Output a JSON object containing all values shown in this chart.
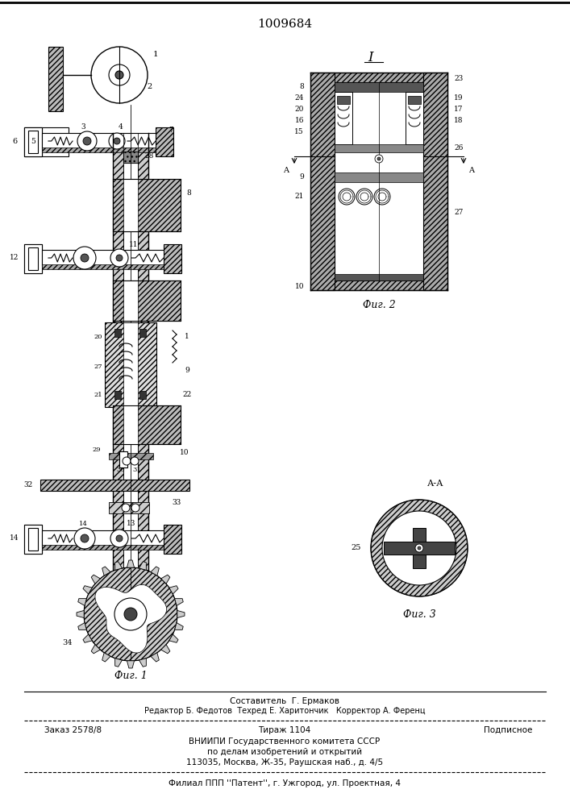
{
  "patent_number": "1009684",
  "bg": "#ffffff",
  "lc": "#000000",
  "fig_width": 7.07,
  "fig_height": 10.0,
  "fig1_caption": "Фиг. 1",
  "fig2_caption": "Фиг. 2",
  "fig3_caption": "Фиг. 3",
  "footer1": "Составитель  Г. Ермаков",
  "footer2": "Редактор Б. Федотов  Техред Е. Харитончик   Корректор А. Ференц",
  "footer3a": "Заказ 2578/8",
  "footer3b": "Тираж 1104",
  "footer3c": "Подписное",
  "footer4": "ВНИИПИ Государственного комитета СССР",
  "footer5": "по делам изобретений и открытий",
  "footer6": "113035, Москва, Ж-35, Раушская наб., д. 4/5",
  "footer7": "Филиал ППП ''Патент'', г. Ужгород, ул. Проектная, 4"
}
